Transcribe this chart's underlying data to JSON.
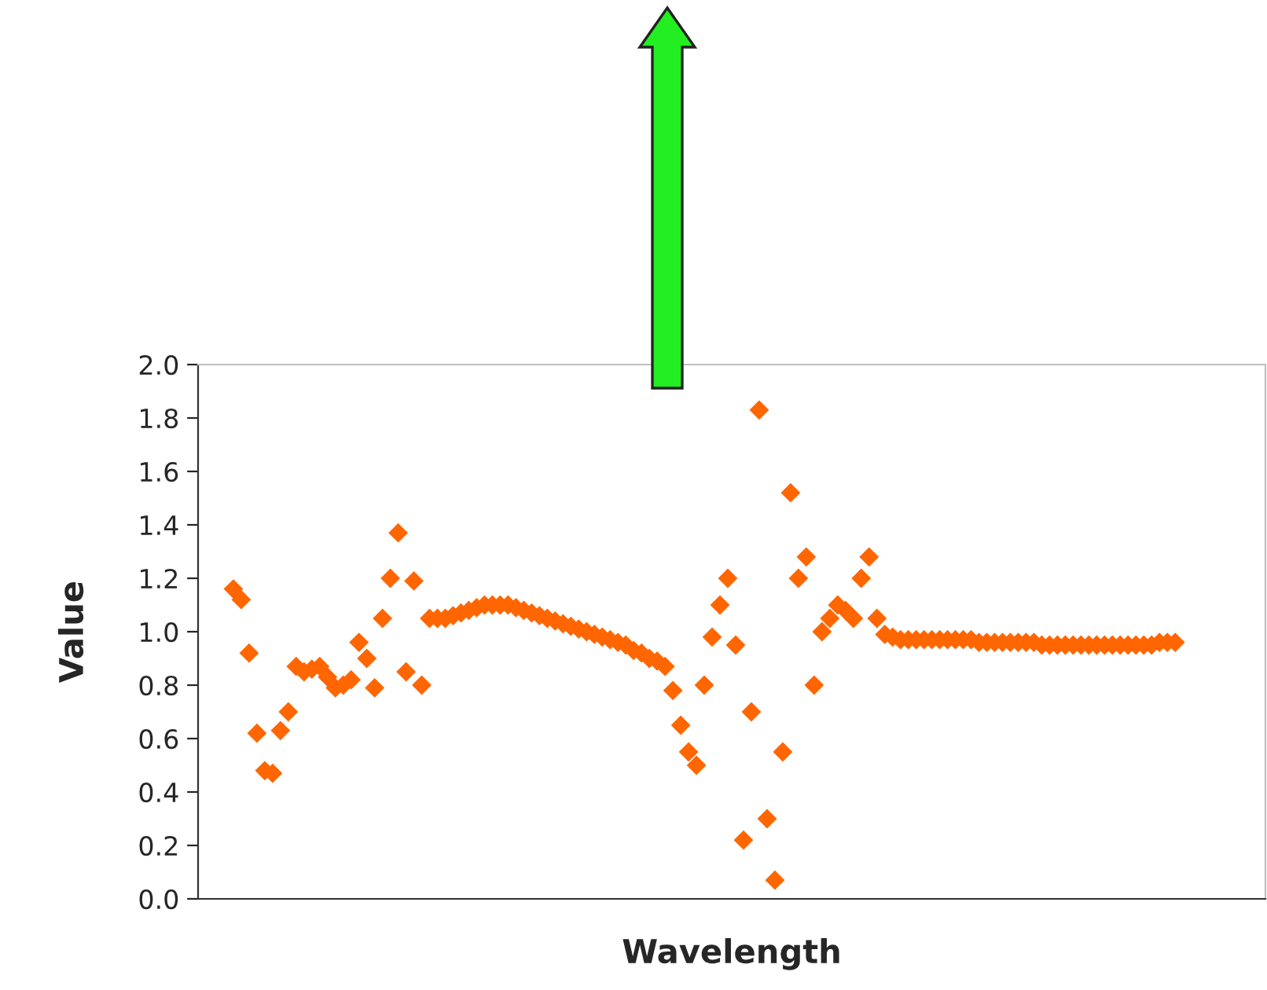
{
  "chart_data": {
    "type": "scatter",
    "xlabel": "Wavelength",
    "ylabel": "Value",
    "categories": [
      null,
      null,
      null,
      null,
      null,
      null,
      null,
      null,
      null,
      null,
      null,
      null,
      null,
      null,
      null,
      null,
      null,
      null,
      null,
      null,
      null,
      null,
      null,
      null,
      null,
      null,
      null,
      null,
      null,
      null,
      null,
      null,
      null,
      null,
      null,
      null,
      null,
      null,
      null,
      null,
      null,
      null,
      null,
      null,
      null,
      null,
      null,
      null,
      null,
      null,
      null,
      null,
      null,
      null,
      null,
      null,
      null,
      null,
      null,
      null,
      null,
      null,
      null,
      null,
      null,
      null,
      null,
      null,
      null,
      null,
      null,
      null,
      null,
      null,
      null,
      null,
      null,
      null,
      null,
      null,
      null,
      null,
      null,
      null,
      null,
      null,
      null,
      null,
      null,
      null,
      null,
      null,
      null,
      null,
      null,
      null,
      null,
      null,
      null,
      null,
      null,
      null,
      null,
      null,
      null,
      null,
      null,
      null,
      null,
      null,
      null,
      null,
      null,
      null,
      null,
      null,
      null,
      null,
      null,
      null,
      null,
      null,
      null,
      null,
      null,
      null,
      null,
      null,
      null,
      null,
      null,
      null,
      null,
      null,
      null,
      null
    ],
    "series": [
      {
        "color": "#ff6600",
        "values": [
          null,
          null,
          null,
          null,
          1.16,
          1.12,
          0.92,
          0.62,
          0.48,
          0.47,
          0.63,
          0.7,
          0.87,
          0.85,
          0.86,
          0.87,
          0.83,
          0.79,
          0.8,
          0.82,
          0.96,
          0.9,
          0.79,
          1.05,
          1.2,
          1.37,
          0.85,
          1.19,
          0.8,
          1.05,
          1.05,
          1.05,
          1.06,
          1.07,
          1.08,
          1.09,
          1.1,
          1.1,
          1.1,
          1.1,
          1.09,
          1.08,
          1.07,
          1.06,
          1.05,
          1.04,
          1.03,
          1.02,
          1.01,
          1.0,
          0.99,
          0.98,
          0.97,
          0.96,
          0.95,
          0.93,
          0.92,
          0.9,
          0.89,
          0.87,
          0.78,
          0.65,
          0.55,
          0.5,
          0.8,
          0.98,
          1.1,
          1.2,
          0.95,
          0.22,
          0.7,
          1.83,
          0.3,
          0.07,
          0.55,
          1.52,
          1.2,
          1.28,
          0.8,
          1.0,
          1.05,
          1.1,
          1.08,
          1.05,
          1.2,
          1.28,
          1.05,
          0.99,
          0.98,
          0.97,
          0.97,
          0.97,
          0.97,
          0.97,
          0.97,
          0.97,
          0.97,
          0.97,
          0.97,
          0.96,
          0.96,
          0.96,
          0.96,
          0.96,
          0.96,
          0.96,
          0.96,
          0.95,
          0.95,
          0.95,
          0.95,
          0.95,
          0.95,
          0.95,
          0.95,
          0.95,
          0.95,
          0.95,
          0.95,
          0.95,
          0.95,
          0.95,
          0.96,
          0.96,
          0.96,
          null,
          null,
          null,
          null,
          null,
          null,
          null,
          null,
          null,
          null,
          null
        ]
      }
    ],
    "ylim": [
      0,
      2.0
    ],
    "yticks": [
      {
        "value": 0,
        "label": "0.0"
      },
      {
        "value": 0.2,
        "label": "0.2"
      },
      {
        "value": 0.4,
        "label": "0.4"
      },
      {
        "value": 0.6,
        "label": "0.6"
      },
      {
        "value": 0.8,
        "label": "0.8"
      },
      {
        "value": 1.0,
        "label": "1.0"
      },
      {
        "value": 1.2,
        "label": "1.2"
      },
      {
        "value": 1.4,
        "label": "1.4"
      },
      {
        "value": 1.6,
        "label": "1.6"
      },
      {
        "value": 1.8,
        "label": "1.8"
      },
      {
        "value": 2.0,
        "label": "2.0"
      }
    ],
    "marker": "diamond",
    "grid": false,
    "legend": false,
    "tick_labels": "y"
  }
}
